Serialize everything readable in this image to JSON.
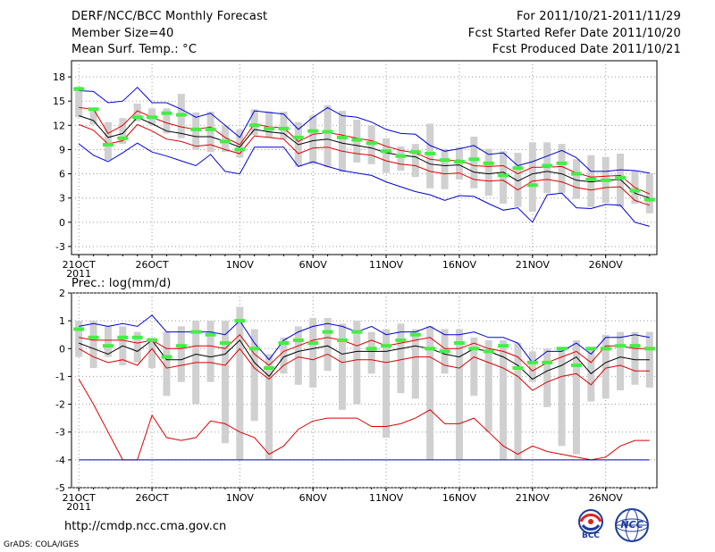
{
  "header": {
    "title": "DERF/NCC/BCC Monthly Forecast",
    "member_size": "Member Size=40",
    "variable": "Mean Surf. Temp.: °C",
    "period": "For 2011/10/21-2011/11/29",
    "start_date": "Fcst Started Refer Date 2011/10/20",
    "produced_date": "Fcst Produced Date 2011/10/21"
  },
  "footer": {
    "url": "http://cmdp.ncc.cma.gov.cn",
    "credit": "GrADS: COLA/IGES",
    "logo_bcc": "BCC",
    "logo_ncc": "NCC"
  },
  "colors": {
    "grid": "#999999",
    "box": "#d0d0d0",
    "ens_mean": "#000000",
    "spread": "#dd0000",
    "extreme": "#0000dd",
    "median": "#44ee44"
  },
  "chart_data": [
    {
      "type": "line",
      "title": "Mean Surf. Temp.: °C",
      "ylabel": "°C",
      "ylim": [
        -4,
        20
      ],
      "yticks": [
        -3,
        0,
        3,
        6,
        9,
        12,
        15,
        18
      ],
      "xticks": [
        {
          "day": 0,
          "label": "21OCT",
          "sub": "2011"
        },
        {
          "day": 5,
          "label": "26OCT"
        },
        {
          "day": 11,
          "label": "1NOV"
        },
        {
          "day": 16,
          "label": "6NOV"
        },
        {
          "day": 21,
          "label": "11NOV"
        },
        {
          "day": 26,
          "label": "16NOV"
        },
        {
          "day": 31,
          "label": "21NOV"
        },
        {
          "day": 36,
          "label": "26NOV"
        }
      ],
      "series": [
        {
          "name": "max",
          "values": [
            16.3,
            16.2,
            14.8,
            15.0,
            16.7,
            14.8,
            14.8,
            14.0,
            13.0,
            13.5,
            12.0,
            10.5,
            13.8,
            13.6,
            13.4,
            11.5,
            13.0,
            14.2,
            13.2,
            13.0,
            12.4,
            11.5,
            11.0,
            10.9,
            9.5,
            8.8,
            9.1,
            9.5,
            8.4,
            8.6,
            7.0,
            7.5,
            8.2,
            8.9,
            8.0,
            6.3,
            6.3,
            6.5,
            6.4,
            6.1
          ]
        },
        {
          "name": "p75",
          "values": [
            14.2,
            14.0,
            11.0,
            12.0,
            13.8,
            13.0,
            12.3,
            11.8,
            11.5,
            11.8,
            10.5,
            9.6,
            12.2,
            11.8,
            11.7,
            10.0,
            10.9,
            11.1,
            10.8,
            10.4,
            10.1,
            9.4,
            8.9,
            8.6,
            7.8,
            7.6,
            7.7,
            7.0,
            6.9,
            7.0,
            6.0,
            6.8,
            6.8,
            6.9,
            6.1,
            5.6,
            5.7,
            5.8,
            4.3,
            3.5
          ]
        },
        {
          "name": "mean",
          "values": [
            13.2,
            12.6,
            10.5,
            11.0,
            13.0,
            12.2,
            11.3,
            11.0,
            10.6,
            10.6,
            10.0,
            9.3,
            11.5,
            11.2,
            11.0,
            9.6,
            10.1,
            10.3,
            9.8,
            9.5,
            9.2,
            8.6,
            8.3,
            8.1,
            7.2,
            7.0,
            7.1,
            6.2,
            6.0,
            6.2,
            5.1,
            6.0,
            6.3,
            6.0,
            5.2,
            5.0,
            5.2,
            5.3,
            3.6,
            3.0
          ]
        },
        {
          "name": "p25",
          "values": [
            12.1,
            11.4,
            9.7,
            10.1,
            12.1,
            11.3,
            10.3,
            10.0,
            9.4,
            9.6,
            9.0,
            8.5,
            10.7,
            10.5,
            10.3,
            8.5,
            9.2,
            9.3,
            8.8,
            8.5,
            8.3,
            7.6,
            7.2,
            7.0,
            6.3,
            6.0,
            6.1,
            5.3,
            5.1,
            5.2,
            4.0,
            5.1,
            5.3,
            5.0,
            4.3,
            4.0,
            4.3,
            4.4,
            2.7,
            2.1
          ]
        },
        {
          "name": "min",
          "values": [
            9.7,
            8.3,
            7.5,
            8.6,
            9.8,
            8.7,
            8.2,
            7.6,
            7.0,
            8.4,
            6.3,
            6.0,
            9.3,
            9.3,
            9.3,
            6.9,
            7.5,
            6.9,
            6.4,
            6.1,
            5.8,
            5.0,
            4.4,
            3.8,
            3.4,
            2.7,
            3.3,
            3.2,
            2.3,
            1.5,
            1.8,
            0.0,
            3.4,
            3.6,
            1.8,
            1.7,
            2.2,
            2.1,
            0.0,
            -0.5
          ]
        },
        {
          "name": "median",
          "values": [
            16.5,
            14.0,
            9.6,
            10.4,
            13.0,
            13.0,
            13.5,
            13.3,
            11.5,
            11.5,
            10.0,
            9.0,
            12.0,
            11.6,
            11.6,
            10.5,
            11.3,
            11.2,
            10.5,
            10.2,
            9.8,
            8.8,
            8.2,
            8.7,
            8.5,
            7.7,
            7.5,
            7.8,
            7.3,
            5.8,
            6.7,
            4.6,
            7.0,
            7.3,
            6.0,
            5.3,
            5.2,
            5.5,
            3.9,
            2.8
          ]
        },
        {
          "name": "box_high",
          "values": [
            16.8,
            14.0,
            12.4,
            12.9,
            14.7,
            14.1,
            14.1,
            15.9,
            13.6,
            13.7,
            12.0,
            11.5,
            14.0,
            13.7,
            13.7,
            12.4,
            13.2,
            14.5,
            13.8,
            12.7,
            12.0,
            10.4,
            9.4,
            9.7,
            12.2,
            9.1,
            9.3,
            10.6,
            9.1,
            8.8,
            8.6,
            9.9,
            9.9,
            9.7,
            7.8,
            8.3,
            8.1,
            8.5,
            6.4,
            6.1
          ]
        },
        {
          "name": "box_low",
          "values": [
            13.0,
            12.1,
            7.7,
            9.7,
            12.5,
            12.1,
            11.0,
            10.4,
            9.0,
            8.7,
            8.7,
            8.0,
            10.8,
            10.5,
            10.3,
            6.9,
            7.2,
            6.8,
            6.2,
            7.4,
            7.2,
            6.1,
            6.4,
            5.6,
            4.2,
            4.1,
            5.3,
            4.2,
            3.3,
            2.3,
            1.9,
            1.3,
            3.6,
            3.6,
            2.9,
            1.9,
            2.4,
            1.9,
            2.3,
            1.1
          ]
        }
      ]
    },
    {
      "type": "line",
      "title": "Prec.: log(mm/d)",
      "ylabel": "log(mm/d)",
      "ylim": [
        -5,
        2
      ],
      "yticks": [
        -5,
        -4,
        -3,
        -2,
        -1,
        0,
        1,
        2
      ],
      "xticks": [
        {
          "day": 0,
          "label": "21OCT",
          "sub": "2011"
        },
        {
          "day": 5,
          "label": "26OCT"
        },
        {
          "day": 11,
          "label": "1NOV"
        },
        {
          "day": 16,
          "label": "6NOV"
        },
        {
          "day": 21,
          "label": "11NOV"
        },
        {
          "day": 26,
          "label": "16NOV"
        },
        {
          "day": 31,
          "label": "21NOV"
        },
        {
          "day": 36,
          "label": "26NOV"
        }
      ],
      "series": [
        {
          "name": "max",
          "values": [
            0.8,
            0.9,
            0.8,
            0.9,
            0.8,
            1.2,
            0.6,
            0.6,
            0.6,
            0.6,
            0.5,
            1.0,
            0.2,
            -0.4,
            0.3,
            0.6,
            0.8,
            0.9,
            0.8,
            0.6,
            0.8,
            0.5,
            0.6,
            0.6,
            0.8,
            0.5,
            0.5,
            0.6,
            0.4,
            0.4,
            0.2,
            -0.5,
            -0.1,
            -0.1,
            0.2,
            -0.2,
            0.4,
            0.4,
            0.5,
            0.4
          ]
        },
        {
          "name": "p75",
          "values": [
            0.4,
            0.3,
            0.3,
            0.3,
            0.2,
            0.3,
            0.0,
            0.0,
            0.1,
            0.1,
            0.0,
            0.5,
            -0.2,
            -0.6,
            -0.1,
            0.1,
            0.3,
            0.4,
            0.3,
            0.1,
            0.3,
            0.1,
            0.2,
            0.3,
            0.4,
            0.0,
            0.0,
            0.2,
            0.0,
            -0.1,
            -0.3,
            -0.8,
            -0.5,
            -0.3,
            -0.1,
            -0.5,
            0.1,
            0.1,
            0.0,
            0.0
          ]
        },
        {
          "name": "mean",
          "values": [
            0.2,
            0.0,
            -0.2,
            0.1,
            -0.1,
            0.3,
            -0.4,
            -0.4,
            -0.2,
            -0.3,
            -0.2,
            0.3,
            -0.5,
            -1.0,
            -0.3,
            -0.1,
            0.0,
            0.1,
            -0.2,
            -0.1,
            -0.1,
            -0.1,
            0.0,
            0.1,
            0.0,
            -0.2,
            -0.3,
            0.0,
            -0.1,
            -0.3,
            -0.6,
            -1.1,
            -0.8,
            -0.6,
            -0.3,
            -0.9,
            -0.5,
            -0.3,
            -0.4,
            -0.4
          ]
        },
        {
          "name": "p25",
          "values": [
            0.0,
            -0.3,
            -0.5,
            -0.4,
            -0.6,
            0.0,
            -0.7,
            -0.6,
            -0.5,
            -0.5,
            -0.6,
            0.0,
            -0.7,
            -1.1,
            -0.6,
            -0.3,
            -0.4,
            -0.2,
            -0.5,
            -0.4,
            -0.4,
            -0.5,
            -0.4,
            -0.3,
            -0.3,
            -0.6,
            -0.7,
            -0.3,
            -0.5,
            -0.7,
            -1.0,
            -1.5,
            -1.2,
            -1.0,
            -0.9,
            -1.3,
            -0.7,
            -0.6,
            -0.8,
            -0.8
          ]
        },
        {
          "name": "min",
          "values": [
            -1.1,
            -2.0,
            -3.0,
            -4.0,
            -4.0,
            -2.4,
            -3.2,
            -3.3,
            -3.2,
            -2.6,
            -2.7,
            -3.0,
            -3.2,
            -3.8,
            -3.5,
            -2.9,
            -2.6,
            -2.5,
            -2.5,
            -2.5,
            -2.8,
            -2.8,
            -2.7,
            -2.5,
            -2.2,
            -2.7,
            -2.7,
            -2.5,
            -3.0,
            -3.5,
            -3.8,
            -3.5,
            -3.7,
            -3.8,
            -3.9,
            -4.0,
            -3.9,
            -3.5,
            -3.3,
            -3.3
          ]
        },
        {
          "name": "floor",
          "values": [
            -4,
            -4,
            -4,
            -4,
            -4,
            -4,
            -4,
            -4,
            -4,
            -4,
            -4,
            -4,
            -4,
            -4,
            -4,
            -4,
            -4,
            -4,
            -4,
            -4,
            -4,
            -4,
            -4,
            -4,
            -4,
            -4,
            -4,
            -4,
            -4,
            -4,
            -4,
            -4,
            -4,
            -4,
            -4,
            -4,
            -4,
            -4,
            -4,
            -4
          ]
        },
        {
          "name": "median",
          "values": [
            0.7,
            0.4,
            0.1,
            0.4,
            0.4,
            0.3,
            -0.3,
            0.1,
            0.6,
            0.5,
            0.2,
            1.0,
            0.0,
            -0.7,
            0.2,
            0.3,
            0.2,
            0.6,
            0.3,
            0.6,
            0.0,
            0.1,
            0.3,
            0.5,
            0.0,
            -0.1,
            0.2,
            0.0,
            -0.1,
            0.1,
            -0.7,
            -0.5,
            -0.5,
            0.0,
            -0.6,
            0.0,
            0.0,
            0.1,
            0.1,
            0.0
          ]
        },
        {
          "name": "box_high",
          "values": [
            1.0,
            1.0,
            0.8,
            0.8,
            0.6,
            0.4,
            0.6,
            0.8,
            1.0,
            1.0,
            1.0,
            1.5,
            0.7,
            -0.2,
            0.4,
            0.8,
            1.1,
            1.1,
            0.9,
            1.0,
            0.6,
            0.7,
            0.9,
            0.7,
            0.8,
            0.7,
            0.7,
            0.4,
            0.3,
            0.3,
            0.2,
            -0.1,
            0.0,
            0.0,
            0.3,
            0.0,
            0.5,
            0.6,
            0.6,
            0.6
          ]
        },
        {
          "name": "box_low",
          "values": [
            -0.3,
            -0.7,
            -0.3,
            -0.6,
            -0.5,
            -0.7,
            -1.7,
            -1.2,
            -2.0,
            -1.2,
            -3.4,
            -4.0,
            -2.6,
            -4.0,
            -0.9,
            -1.3,
            -1.4,
            -0.8,
            -2.2,
            -2.0,
            -0.9,
            -3.2,
            -1.6,
            -1.8,
            -4.0,
            -0.9,
            -4.0,
            -1.7,
            -3.0,
            -4.0,
            -4.0,
            -1.2,
            -2.1,
            -3.5,
            -3.8,
            -1.9,
            -1.8,
            -1.5,
            -1.3,
            -1.4
          ]
        }
      ]
    }
  ]
}
